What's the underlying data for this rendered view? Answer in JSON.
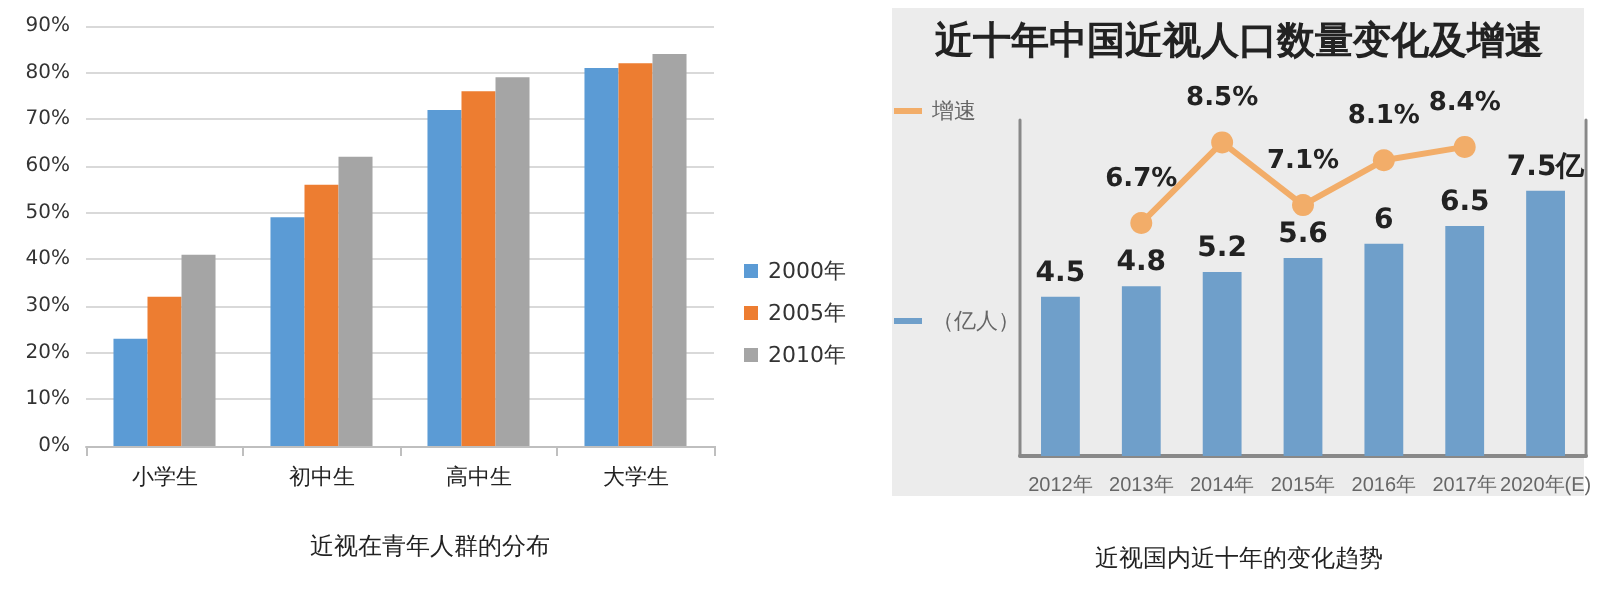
{
  "chart_data": [
    {
      "type": "bar",
      "categories": [
        "小学生",
        "初中生",
        "高中生",
        "大学生"
      ],
      "series": [
        {
          "name": "2000年",
          "color": "#5b9bd5",
          "values": [
            23,
            49,
            72,
            81
          ]
        },
        {
          "name": "2005年",
          "color": "#ed7d31",
          "values": [
            32,
            56,
            76,
            82
          ]
        },
        {
          "name": "2010年",
          "color": "#a5a5a5",
          "values": [
            41,
            62,
            79,
            84
          ]
        }
      ],
      "ylim": [
        0,
        90
      ],
      "yticks": [
        {
          "value": 0,
          "label": "0%"
        },
        {
          "value": 10,
          "label": "10%"
        },
        {
          "value": 20,
          "label": "20%"
        },
        {
          "value": 30,
          "label": "30%"
        },
        {
          "value": 40,
          "label": "40%"
        },
        {
          "value": 50,
          "label": "50%"
        },
        {
          "value": 60,
          "label": "60%"
        },
        {
          "value": 70,
          "label": "70%"
        },
        {
          "value": 80,
          "label": "80%"
        },
        {
          "value": 90,
          "label": "90%"
        }
      ],
      "grid": "y",
      "legend": "right",
      "annotations": [
        "近视在青年人群的分布"
      ]
    },
    {
      "type": "bar",
      "title": "近十年中国近视人口数量变化及增速",
      "categories": [
        "2012年",
        "2013年",
        "2014年",
        "2015年",
        "2016年",
        "2017年",
        "2020年(E)"
      ],
      "series": [
        {
          "name": "（亿人）",
          "color": "#6f9fca",
          "values": [
            4.5,
            4.8,
            5.2,
            5.6,
            6,
            6.5,
            7.5
          ],
          "value_labels": [
            "4.5",
            "4.8",
            "5.2",
            "5.6",
            "6",
            "6.5",
            "7.5亿"
          ]
        },
        {
          "name": "增速",
          "type": "line",
          "axis": "y2",
          "color": "#f2ad69",
          "values": [
            null,
            6.7,
            8.5,
            7.1,
            8.1,
            8.4,
            null
          ],
          "value_labels": [
            null,
            "6.7%",
            "8.5%",
            "7.1%",
            "8.1%",
            "8.4%",
            null
          ]
        }
      ],
      "ylim": [
        0,
        9.5
      ],
      "y2lim": [
        1.5,
        9
      ],
      "marker": "circle",
      "grid": false,
      "legend": "left",
      "annotations": [
        "近视国内近十年的变化趋势"
      ]
    }
  ]
}
